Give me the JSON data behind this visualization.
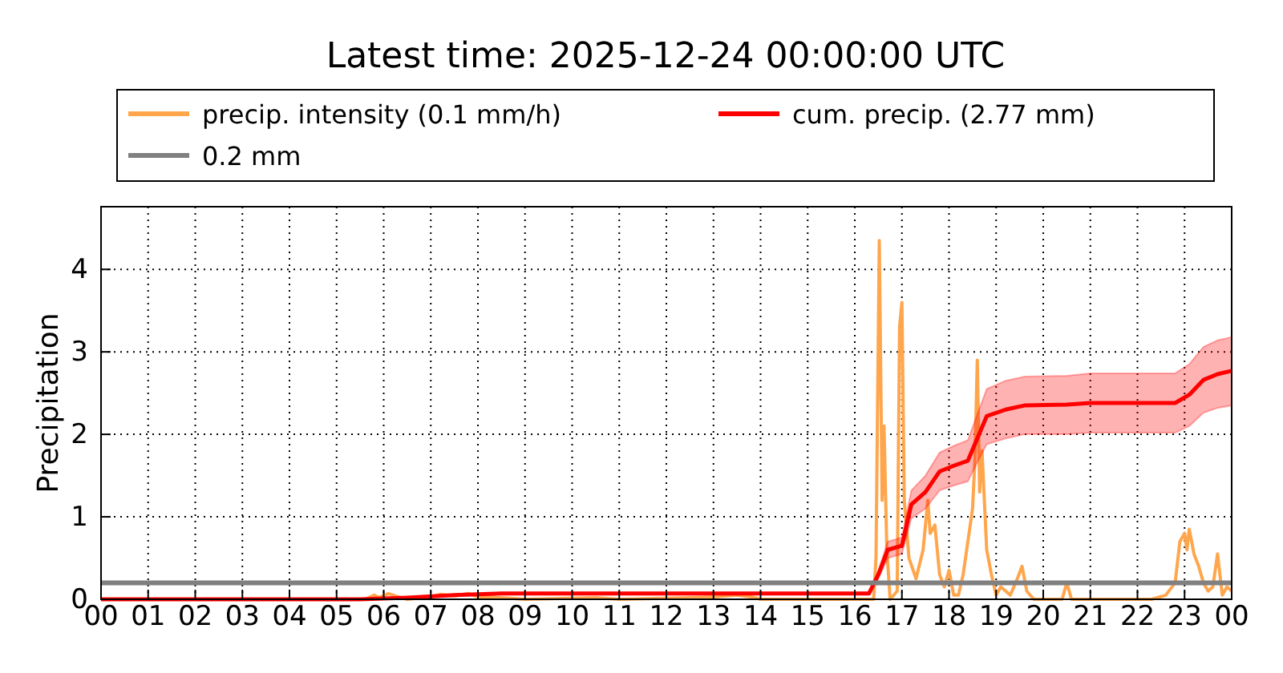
{
  "chart_data": {
    "type": "line",
    "title": "Latest time: 2025-12-24 00:00:00 UTC",
    "ylabel": "Precipitation",
    "xlim": [
      0,
      24
    ],
    "ylim": [
      0,
      4.76
    ],
    "xticks": [
      {
        "value": 0,
        "label": "00"
      },
      {
        "value": 1,
        "label": "01"
      },
      {
        "value": 2,
        "label": "02"
      },
      {
        "value": 3,
        "label": "03"
      },
      {
        "value": 4,
        "label": "04"
      },
      {
        "value": 5,
        "label": "05"
      },
      {
        "value": 6,
        "label": "06"
      },
      {
        "value": 7,
        "label": "07"
      },
      {
        "value": 8,
        "label": "08"
      },
      {
        "value": 9,
        "label": "09"
      },
      {
        "value": 10,
        "label": "10"
      },
      {
        "value": 11,
        "label": "11"
      },
      {
        "value": 12,
        "label": "12"
      },
      {
        "value": 13,
        "label": "13"
      },
      {
        "value": 14,
        "label": "14"
      },
      {
        "value": 15,
        "label": "15"
      },
      {
        "value": 16,
        "label": "16"
      },
      {
        "value": 17,
        "label": "17"
      },
      {
        "value": 18,
        "label": "18"
      },
      {
        "value": 19,
        "label": "19"
      },
      {
        "value": 20,
        "label": "20"
      },
      {
        "value": 21,
        "label": "21"
      },
      {
        "value": 22,
        "label": "22"
      },
      {
        "value": 23,
        "label": "23"
      },
      {
        "value": 24,
        "label": "00"
      }
    ],
    "yticks": [
      0,
      1,
      2,
      3,
      4
    ],
    "grid": true,
    "legend": "top",
    "line_style": "solid",
    "series": [
      {
        "name": "precip. intensity (0.1 mm/h)",
        "color": "#ffa64d",
        "x": [
          0,
          5.6,
          5.8,
          5.9,
          6.1,
          6.3,
          6.5,
          7.0,
          7.2,
          7.5,
          7.8,
          8.0,
          8.5,
          9,
          10.5,
          11,
          12.5,
          13,
          13.5,
          13.8,
          14,
          16.4,
          16.45,
          16.52,
          16.58,
          16.62,
          16.68,
          16.75,
          16.9,
          16.95,
          17.0,
          17.05,
          17.15,
          17.3,
          17.45,
          17.55,
          17.6,
          17.7,
          17.8,
          17.9,
          18.0,
          18.1,
          18.2,
          18.3,
          18.4,
          18.5,
          18.55,
          18.6,
          18.65,
          18.7,
          18.8,
          18.9,
          19.0,
          19.1,
          19.3,
          19.45,
          19.55,
          19.65,
          19.8,
          20.4,
          20.5,
          20.6,
          22.3,
          22.6,
          22.8,
          22.9,
          23.0,
          23.05,
          23.1,
          23.2,
          23.3,
          23.4,
          23.5,
          23.6,
          23.7,
          23.8,
          23.9,
          24
        ],
        "values": [
          0,
          0,
          0.05,
          0.02,
          0.07,
          0.03,
          0,
          0.03,
          0.06,
          0.04,
          0.07,
          0.03,
          0.02,
          0,
          0.02,
          0,
          0.02,
          0.03,
          0.05,
          0.03,
          0,
          0,
          0.5,
          4.35,
          1.2,
          2.1,
          0.6,
          0,
          0.1,
          3.3,
          3.6,
          1.2,
          0.5,
          0.25,
          0.6,
          1.2,
          0.8,
          0.9,
          0.3,
          0.15,
          0.35,
          0.05,
          0.05,
          0.3,
          0.7,
          1.1,
          1.7,
          2.9,
          1.3,
          1.8,
          0.6,
          0.3,
          0.05,
          0.15,
          0.05,
          0.25,
          0.4,
          0.1,
          0,
          0,
          0.2,
          0,
          0,
          0.05,
          0.2,
          0.7,
          0.8,
          0.6,
          0.85,
          0.55,
          0.4,
          0.2,
          0.1,
          0.15,
          0.55,
          0.05,
          0.15,
          0.1
        ]
      },
      {
        "name": "cum. precip. (2.77 mm)",
        "color": "#ff0000",
        "x": [
          0,
          5.5,
          6.5,
          7.5,
          8.5,
          16.3,
          16.5,
          16.7,
          17.0,
          17.2,
          17.5,
          17.8,
          18.1,
          18.4,
          18.6,
          18.8,
          19.2,
          19.6,
          20.5,
          21.0,
          22.8,
          23.1,
          23.4,
          23.7,
          24
        ],
        "values": [
          0,
          0,
          0.02,
          0.05,
          0.07,
          0.07,
          0.3,
          0.6,
          0.65,
          1.15,
          1.3,
          1.55,
          1.62,
          1.68,
          1.95,
          2.22,
          2.3,
          2.35,
          2.36,
          2.38,
          2.38,
          2.48,
          2.66,
          2.73,
          2.77
        ],
        "lower": [
          0,
          0,
          0.02,
          0.04,
          0.06,
          0.06,
          0.25,
          0.5,
          0.55,
          0.98,
          1.1,
          1.32,
          1.38,
          1.43,
          1.66,
          1.88,
          1.95,
          2.0,
          2.0,
          2.02,
          2.02,
          2.1,
          2.26,
          2.32,
          2.35
        ],
        "upper": [
          0,
          0,
          0.02,
          0.06,
          0.08,
          0.08,
          0.35,
          0.7,
          0.75,
          1.32,
          1.5,
          1.78,
          1.86,
          1.93,
          2.24,
          2.55,
          2.65,
          2.7,
          2.71,
          2.74,
          2.74,
          2.85,
          3.06,
          3.14,
          3.18
        ]
      }
    ],
    "ref_lines": [
      {
        "axis": "y",
        "value": 0.2,
        "label": "0.2 mm",
        "color": "#808080"
      }
    ]
  }
}
